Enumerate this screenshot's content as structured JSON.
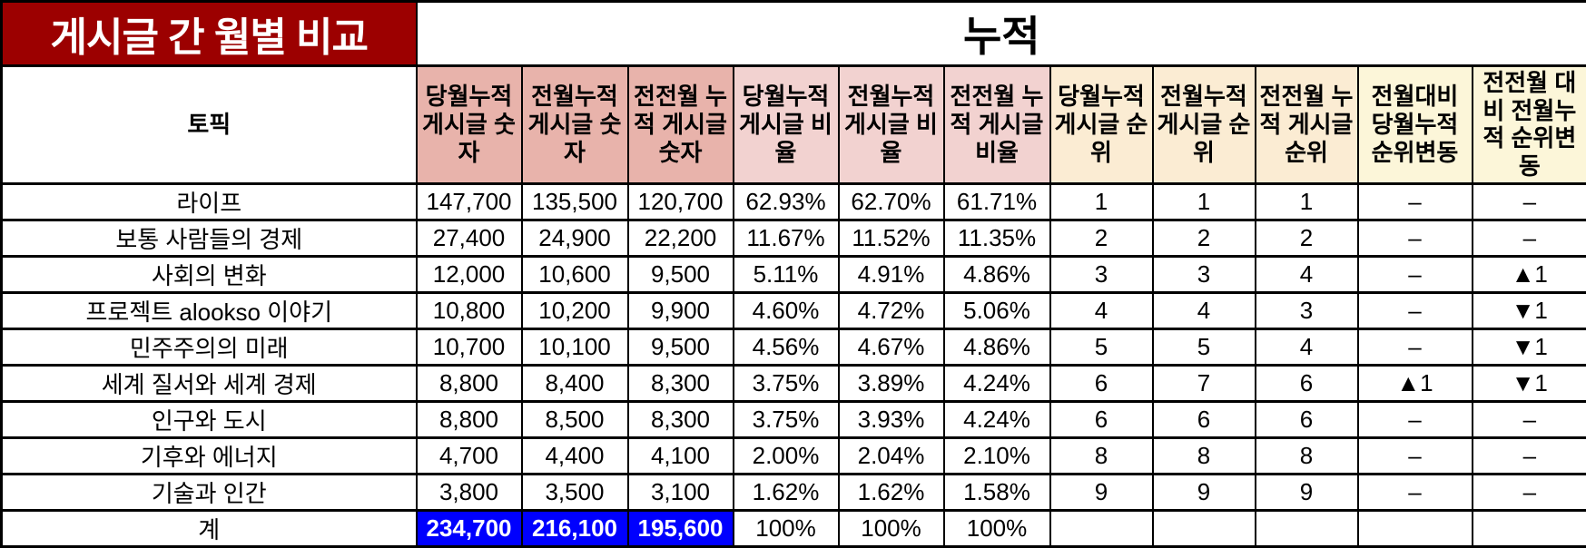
{
  "title": "게시글 간 월별 비교",
  "group_header": "누적",
  "colors": {
    "title_bg": "#9c0000",
    "title_text": "#ffffff",
    "border": "#000000",
    "header_count_bg": "#e8b3ab",
    "header_ratio_bg": "#f2d2d0",
    "header_rank_bg": "#fbecd3",
    "header_change_bg": "#fcf6d9",
    "total_bg": "#0000fe",
    "total_text": "#ffffff",
    "rank_up": "#fe0000",
    "rank_down": "#0000fe"
  },
  "columns": [
    {
      "key": "topic",
      "label": "토픽",
      "group": "topic"
    },
    {
      "key": "cur-count",
      "label": "당월누적 게시글 숫자",
      "group": "count"
    },
    {
      "key": "prev-count",
      "label": "전월누적 게시글 숫자",
      "group": "count"
    },
    {
      "key": "prev2-count",
      "label": "전전월 누적 게시글 숫자",
      "group": "count"
    },
    {
      "key": "cur-ratio",
      "label": "당월누적 게시글 비율",
      "group": "ratio"
    },
    {
      "key": "prev-ratio",
      "label": "전월누적 게시글 비율",
      "group": "ratio"
    },
    {
      "key": "prev2-ratio",
      "label": "전전월 누적 게시글 비율",
      "group": "ratio"
    },
    {
      "key": "cur-rank",
      "label": "당월누적 게시글 순위",
      "group": "rank"
    },
    {
      "key": "prev-rank",
      "label": "전월누적 게시글 순위",
      "group": "rank"
    },
    {
      "key": "prev2-rank",
      "label": "전전월 누적 게시글 순위",
      "group": "rank"
    },
    {
      "key": "mom-change",
      "label": "전월대비 당월누적 순위변동",
      "group": "change"
    },
    {
      "key": "mom2-change",
      "label": "전전월 대비 전월누적 순위변동",
      "group": "change"
    }
  ],
  "rows": [
    [
      "라이프",
      "147,700",
      "135,500",
      "120,700",
      "62.93%",
      "62.70%",
      "61.71%",
      "1",
      "1",
      "1",
      "–",
      "–"
    ],
    [
      "보통 사람들의 경제",
      "27,400",
      "24,900",
      "22,200",
      "11.67%",
      "11.52%",
      "11.35%",
      "2",
      "2",
      "2",
      "–",
      "–"
    ],
    [
      "사회의 변화",
      "12,000",
      "10,600",
      "9,500",
      "5.11%",
      "4.91%",
      "4.86%",
      "3",
      "3",
      "4",
      "–",
      "▲1"
    ],
    [
      "프로젝트 alookso 이야기",
      "10,800",
      "10,200",
      "9,900",
      "4.60%",
      "4.72%",
      "5.06%",
      "4",
      "4",
      "3",
      "–",
      "▼1"
    ],
    [
      "민주주의의 미래",
      "10,700",
      "10,100",
      "9,500",
      "4.56%",
      "4.67%",
      "4.86%",
      "5",
      "5",
      "4",
      "–",
      "▼1"
    ],
    [
      "세계 질서와 세계 경제",
      "8,800",
      "8,400",
      "8,300",
      "3.75%",
      "3.89%",
      "4.24%",
      "6",
      "7",
      "6",
      "▲1",
      "▼1"
    ],
    [
      "인구와 도시",
      "8,800",
      "8,500",
      "8,300",
      "3.75%",
      "3.93%",
      "4.24%",
      "6",
      "6",
      "6",
      "–",
      "–"
    ],
    [
      "기후와 에너지",
      "4,700",
      "4,400",
      "4,100",
      "2.00%",
      "2.04%",
      "2.10%",
      "8",
      "8",
      "8",
      "–",
      "–"
    ],
    [
      "기술과 인간",
      "3,800",
      "3,500",
      "3,100",
      "1.62%",
      "1.62%",
      "1.58%",
      "9",
      "9",
      "9",
      "–",
      "–"
    ]
  ],
  "total_row": [
    "계",
    "234,700",
    "216,100",
    "195,600",
    "100%",
    "100%",
    "100%",
    "",
    "",
    "",
    "",
    ""
  ]
}
